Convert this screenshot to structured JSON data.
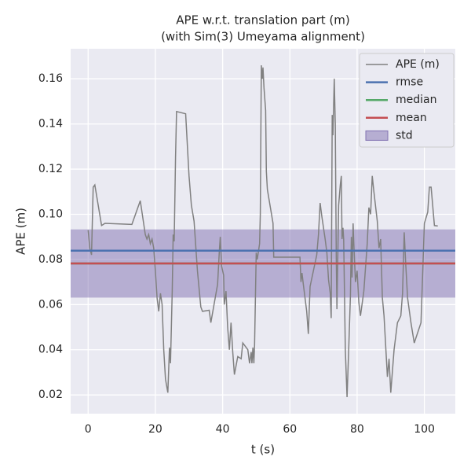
{
  "chart_data": {
    "type": "line",
    "title": "APE w.r.t. translation part (m)",
    "subtitle": "(with Sim(3) Umeyama alignment)",
    "xlabel": "t (s)",
    "ylabel": "APE (m)",
    "xlim": [
      -5.2,
      109.2
    ],
    "ylim": [
      0.0117,
      0.1733
    ],
    "xticks": [
      0,
      20,
      40,
      60,
      80,
      100
    ],
    "yticks": [
      0.02,
      0.04,
      0.06,
      0.08,
      {
        "value": 0.1,
        "label": "0.10"
      },
      0.12,
      0.14,
      0.16
    ],
    "grid": true,
    "legend": "upper right",
    "series": [
      {
        "name": "APE (m)",
        "color": "#808080",
        "x": [
          0,
          0.5,
          1,
          1.5,
          2,
          4,
          5,
          13,
          15.5,
          17,
          17.5,
          18,
          18.5,
          19,
          19.5,
          20,
          20.5,
          21,
          21.5,
          22,
          22.5,
          23,
          23.7,
          24.2,
          24.5,
          25,
          25.3,
          25.6,
          26,
          26.3,
          29,
          30,
          30.7,
          31.5,
          32.5,
          33.5,
          34,
          36,
          36.5,
          38.5,
          39,
          39.3,
          39.7,
          40.3,
          40.5,
          41,
          41.5,
          42,
          42.5,
          43,
          43.5,
          44.5,
          45.5,
          46,
          47.5,
          48,
          48.5,
          48.7,
          49,
          49.3,
          49.5,
          50,
          50.3,
          51,
          51.2,
          51.5,
          51.8,
          52,
          52.3,
          52.8,
          53,
          53.3,
          55,
          55.2,
          63,
          63.3,
          63.6,
          64,
          65,
          65.5,
          66,
          68,
          68.5,
          69,
          69.5,
          70.5,
          71,
          71.5,
          72,
          72.3,
          72.6,
          72.8,
          73.2,
          73.5,
          73.8,
          74,
          74.5,
          75,
          75.3,
          75.5,
          75.8,
          76,
          76.5,
          77,
          77.5,
          78,
          78.3,
          78.5,
          78.8,
          79,
          79.5,
          80,
          80.5,
          81,
          82,
          83,
          83.5,
          84,
          84.5,
          85,
          86,
          86.5,
          87,
          87.5,
          88,
          89,
          89.5,
          90,
          91,
          92,
          93,
          93.5,
          94,
          94.5,
          95,
          96,
          97,
          99,
          100,
          101,
          101.5,
          102,
          103,
          104
        ],
        "values": [
          0.093,
          0.085,
          0.082,
          0.112,
          0.113,
          0.095,
          0.096,
          0.0955,
          0.106,
          0.091,
          0.089,
          0.091,
          0.087,
          0.089,
          0.085,
          0.075,
          0.063,
          0.057,
          0.065,
          0.06,
          0.04,
          0.027,
          0.021,
          0.041,
          0.034,
          0.066,
          0.091,
          0.088,
          0.125,
          0.1455,
          0.1445,
          0.117,
          0.104,
          0.097,
          0.075,
          0.059,
          0.057,
          0.0575,
          0.052,
          0.069,
          0.083,
          0.09,
          0.077,
          0.073,
          0.06,
          0.066,
          0.05,
          0.04,
          0.052,
          0.039,
          0.029,
          0.037,
          0.036,
          0.043,
          0.04,
          0.034,
          0.039,
          0.034,
          0.041,
          0.034,
          0.042,
          0.083,
          0.08,
          0.087,
          0.1,
          0.166,
          0.16,
          0.165,
          0.156,
          0.146,
          0.119,
          0.111,
          0.096,
          0.081,
          0.081,
          0.07,
          0.074,
          0.069,
          0.057,
          0.047,
          0.068,
          0.082,
          0.091,
          0.105,
          0.099,
          0.089,
          0.083,
          0.071,
          0.065,
          0.054,
          0.144,
          0.135,
          0.16,
          0.14,
          0.08,
          0.058,
          0.104,
          0.113,
          0.117,
          0.089,
          0.094,
          0.089,
          0.04,
          0.019,
          0.04,
          0.064,
          0.09,
          0.072,
          0.096,
          0.088,
          0.07,
          0.075,
          0.061,
          0.055,
          0.066,
          0.087,
          0.103,
          0.1,
          0.117,
          0.11,
          0.097,
          0.085,
          0.089,
          0.063,
          0.055,
          0.028,
          0.036,
          0.021,
          0.04,
          0.052,
          0.055,
          0.065,
          0.092,
          0.077,
          0.063,
          0.052,
          0.043,
          0.052,
          0.096,
          0.101,
          0.112,
          0.112,
          0.095,
          0.0948
        ]
      }
    ],
    "reference_lines": [
      {
        "name": "rmse",
        "color": "#4c72b0",
        "value": 0.0839
      },
      {
        "name": "median",
        "color": "#55a868",
        "value": 0.0782
      },
      {
        "name": "mean",
        "color": "#c44e52",
        "value": 0.0782
      }
    ],
    "std": {
      "name": "std",
      "color": "#8172b2",
      "value": 0.0151
    }
  }
}
